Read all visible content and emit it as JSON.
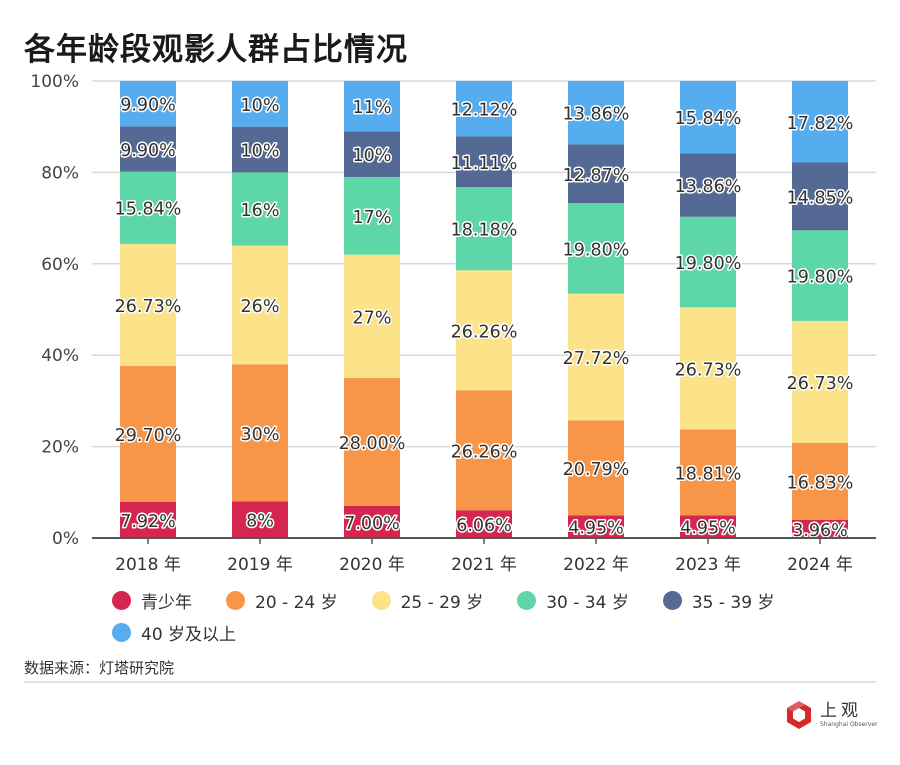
{
  "title": "各年龄段观影人群占比情况",
  "chart_data": {
    "type": "bar",
    "stacked": true,
    "title": "各年龄段观影人群占比情况",
    "xlabel": "",
    "ylabel": "",
    "ylim": [
      0,
      100
    ],
    "grid": true,
    "legend_position": "bottom",
    "y_ticks": [
      "0%",
      "20%",
      "40%",
      "60%",
      "80%",
      "100%"
    ],
    "y_tick_values": [
      0,
      20,
      40,
      60,
      80,
      100
    ],
    "categories": [
      "2018 年",
      "2019 年",
      "2020 年",
      "2021 年",
      "2022 年",
      "2023 年",
      "2024 年"
    ],
    "series": [
      {
        "name": "青少年",
        "color": "#d4264f",
        "values": [
          7.92,
          8,
          7.0,
          6.06,
          4.95,
          4.95,
          3.96
        ],
        "labels": [
          "7.92%",
          "8%",
          "7.00%",
          "6.06%",
          "4.95%",
          "4.95%",
          "3.96%"
        ]
      },
      {
        "name": "20 - 24 岁",
        "color": "#f79548",
        "values": [
          29.7,
          30,
          28.0,
          26.26,
          20.79,
          18.81,
          16.83
        ],
        "labels": [
          "29.70%",
          "30%",
          "28.00%",
          "26.26%",
          "20.79%",
          "18.81%",
          "16.83%"
        ]
      },
      {
        "name": "25 - 29 岁",
        "color": "#fce38a",
        "values": [
          26.73,
          26,
          27,
          26.26,
          27.72,
          26.73,
          26.73
        ],
        "labels": [
          "26.73%",
          "26%",
          "27%",
          "26.26%",
          "27.72%",
          "26.73%",
          "26.73%"
        ]
      },
      {
        "name": "30 - 34 岁",
        "color": "#5dd6a8",
        "values": [
          15.84,
          16,
          17,
          18.18,
          19.8,
          19.8,
          19.8
        ],
        "labels": [
          "15.84%",
          "16%",
          "17%",
          "18.18%",
          "19.80%",
          "19.80%",
          "19.80%"
        ]
      },
      {
        "name": "35 - 39 岁",
        "color": "#546a95",
        "values": [
          9.9,
          10,
          10,
          11.11,
          12.87,
          13.86,
          14.85
        ],
        "labels": [
          "9.90%",
          "10%",
          "10%",
          "11.11%",
          "12.87%",
          "13.86%",
          "14.85%"
        ]
      },
      {
        "name": "40 岁及以上",
        "color": "#55acee",
        "values": [
          9.9,
          10,
          11,
          12.12,
          13.86,
          15.84,
          17.82
        ],
        "labels": [
          "9.90%",
          "10%",
          "11%",
          "12.12%",
          "13.86%",
          "15.84%",
          "17.82%"
        ]
      }
    ]
  },
  "source": "数据来源：灯塔研究院",
  "logo": {
    "cn": "上观",
    "en": "Shanghai Observer",
    "color": "#d42a2a"
  }
}
